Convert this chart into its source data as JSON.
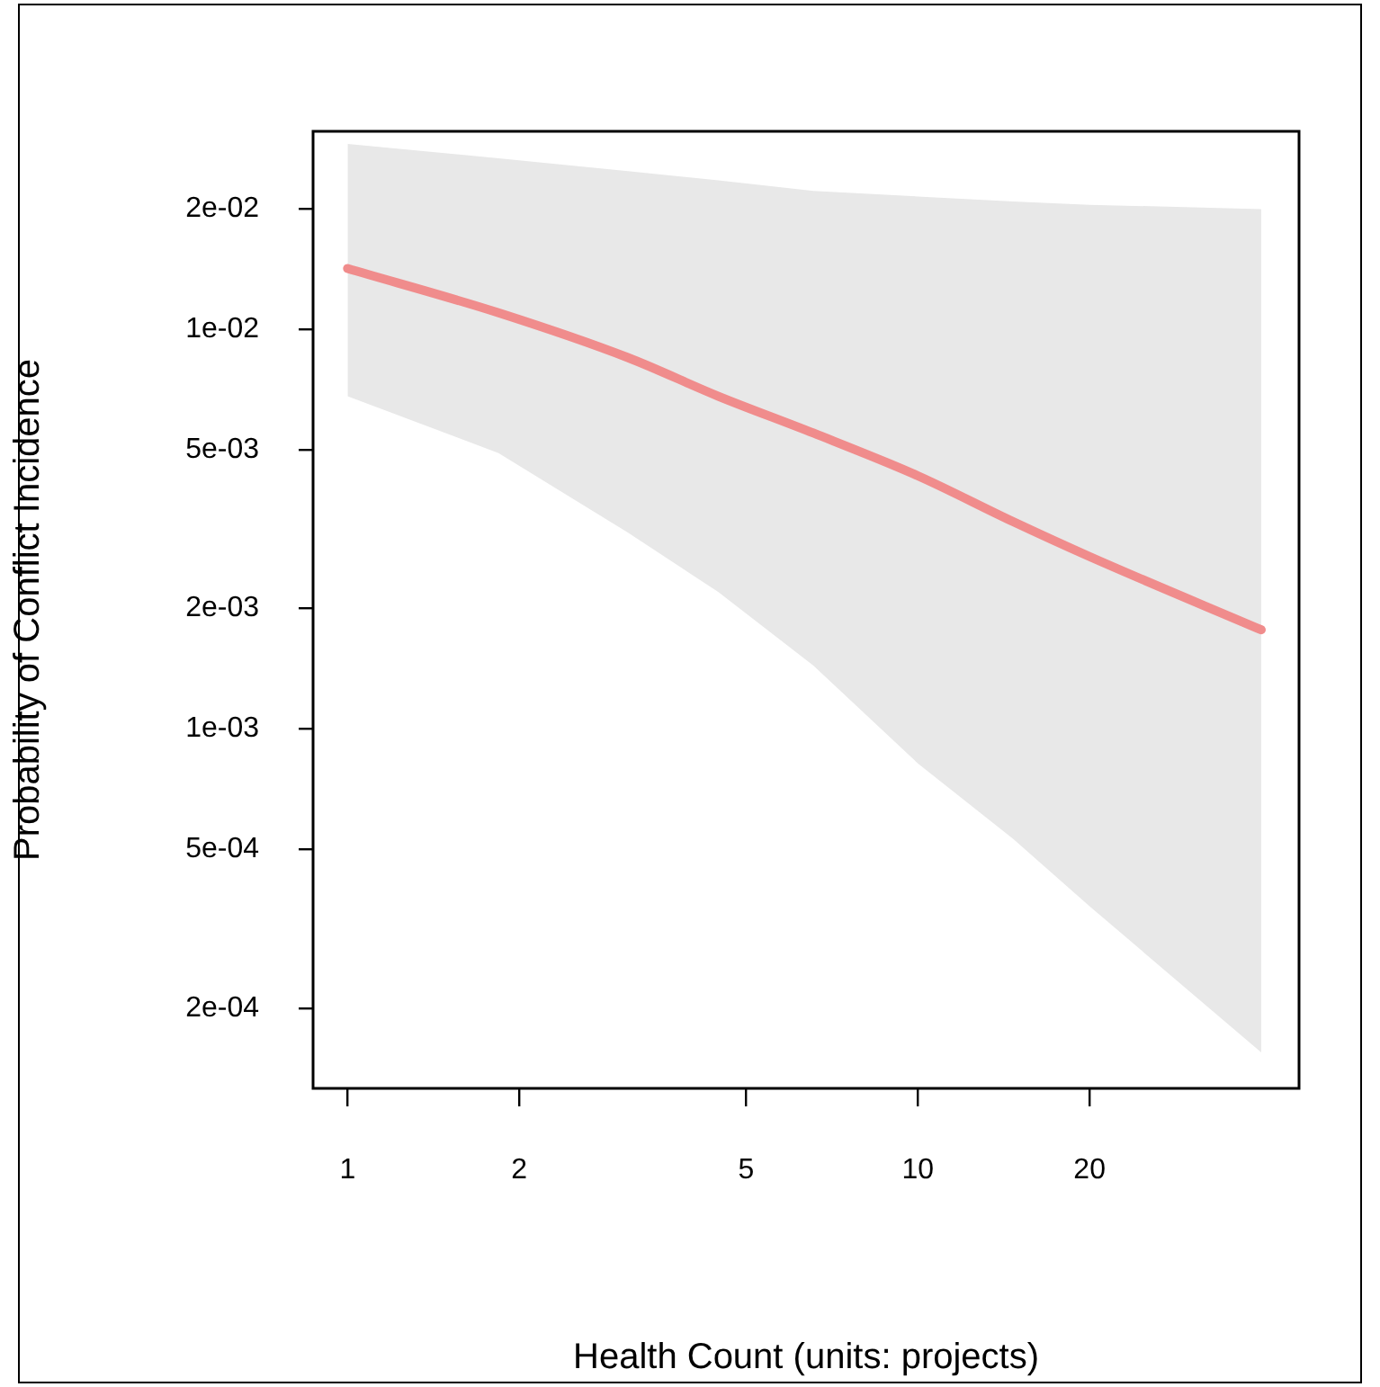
{
  "chart_data": {
    "type": "line",
    "xlabel": "Health Count (units: projects)",
    "ylabel": "Probability of Conflict Incidence",
    "log": "xy",
    "grid": false,
    "legend": false,
    "marker": "none",
    "line_style": "solid",
    "xlim": [
      0.87,
      46.6
    ],
    "xticks": [
      1,
      2,
      5,
      10,
      20
    ],
    "ylim": [
      0.000126,
      0.0313
    ],
    "yticks": [
      {
        "value": 0.02,
        "label": "2e-02"
      },
      {
        "value": 0.01,
        "label": "1e-02"
      },
      {
        "value": 0.005,
        "label": "5e-03"
      },
      {
        "value": 0.002,
        "label": "2e-03"
      },
      {
        "value": 0.001,
        "label": "1e-03"
      },
      {
        "value": 0.0005,
        "label": "5e-04"
      },
      {
        "value": 0.0002,
        "label": "2e-04"
      }
    ],
    "series": [
      {
        "color": "#f08c8c",
        "x": [
          1,
          1.84,
          3.1,
          4.47,
          6.56,
          10,
          14.7,
          20,
          40
        ],
        "values": [
          0.0142,
          0.011,
          0.0085,
          0.0068,
          0.0055,
          0.0043,
          0.0033,
          0.0027,
          0.00177
        ],
        "lower": [
          0.0068,
          0.0049,
          0.0031,
          0.0022,
          0.00144,
          0.00082,
          0.00053,
          0.00036,
          0.000155
        ],
        "upper": [
          0.0291,
          0.0268,
          0.0249,
          0.0236,
          0.0222,
          0.0215,
          0.0209,
          0.0205,
          0.02
        ]
      }
    ]
  }
}
